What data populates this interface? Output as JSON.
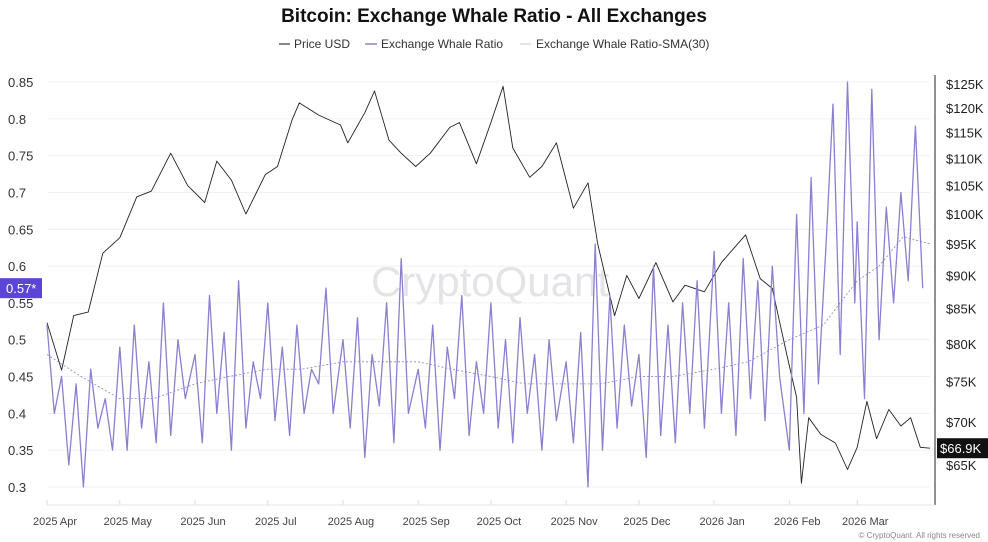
{
  "chart_data": {
    "type": "line",
    "title": "Bitcoin: Exchange Whale Ratio - All Exchanges",
    "legend": {
      "placement": "top-center",
      "entries": [
        "Price USD",
        "Exchange Whale Ratio",
        "Exchange Whale Ratio-SMA(30)"
      ]
    },
    "watermark": "CryptoQuant",
    "copyright": "© CryptoQuant. All rights reserved",
    "x_ticks": [
      "2025 Apr",
      "2025 May",
      "2025 Jun",
      "2025 Jul",
      "2025 Aug",
      "2025 Sep",
      "2025 Oct",
      "2025 Nov",
      "2025 Dec",
      "2026 Jan",
      "2026 Feb",
      "2026 Mar"
    ],
    "x_tick_dates": [
      "2025-04-01",
      "2025-05-01",
      "2025-06-01",
      "2025-07-01",
      "2025-08-01",
      "2025-09-01",
      "2025-10-01",
      "2025-11-01",
      "2025-12-01",
      "2026-01-01",
      "2026-02-01",
      "2026-03-01"
    ],
    "xlim": [
      "2025-04-01",
      "2026-03-31"
    ],
    "y_left": {
      "ylim": [
        0.28,
        0.87
      ],
      "ticks": [
        "0.85",
        "0.8",
        "0.75",
        "0.7",
        "0.65",
        "0.6",
        "0.55",
        "0.5",
        "0.45",
        "0.4",
        "0.35",
        "0.3"
      ],
      "current_label": "0.57*"
    },
    "y_right": {
      "scale": "log",
      "ylim": [
        61000,
        128000
      ],
      "ticks": [
        "$125K",
        "$120K",
        "$115K",
        "$110K",
        "$105K",
        "$100K",
        "$95K",
        "$90K",
        "$85K",
        "$80K",
        "$75K",
        "$70K",
        "$65K"
      ],
      "tick_values": [
        125000,
        120000,
        115000,
        110000,
        105000,
        100000,
        95000,
        90000,
        85000,
        80000,
        75000,
        70000,
        65000
      ],
      "current_label": "$66.9K"
    },
    "colors": {
      "price": "#222222",
      "whale": "#8a7fd0",
      "sma": "#8a7fd0",
      "current_left_bg": "#5b45d6",
      "current_right_bg": "#111111"
    },
    "series": [
      {
        "name": "Price USD",
        "axis": "right",
        "points": [
          [
            "2025-04-01",
            83000
          ],
          [
            "2025-04-07",
            76500
          ],
          [
            "2025-04-12",
            84000
          ],
          [
            "2025-04-18",
            84500
          ],
          [
            "2025-04-24",
            93500
          ],
          [
            "2025-05-01",
            96000
          ],
          [
            "2025-05-08",
            103000
          ],
          [
            "2025-05-14",
            104000
          ],
          [
            "2025-05-22",
            111000
          ],
          [
            "2025-05-29",
            105000
          ],
          [
            "2025-06-05",
            102000
          ],
          [
            "2025-06-10",
            109500
          ],
          [
            "2025-06-16",
            106000
          ],
          [
            "2025-06-22",
            100000
          ],
          [
            "2025-06-30",
            107000
          ],
          [
            "2025-07-05",
            108500
          ],
          [
            "2025-07-11",
            117500
          ],
          [
            "2025-07-14",
            121000
          ],
          [
            "2025-07-22",
            118500
          ],
          [
            "2025-07-31",
            116500
          ],
          [
            "2025-08-03",
            113000
          ],
          [
            "2025-08-10",
            119000
          ],
          [
            "2025-08-14",
            123500
          ],
          [
            "2025-08-20",
            113500
          ],
          [
            "2025-08-25",
            111000
          ],
          [
            "2025-08-31",
            108500
          ],
          [
            "2025-09-06",
            111000
          ],
          [
            "2025-09-14",
            116000
          ],
          [
            "2025-09-18",
            117000
          ],
          [
            "2025-09-25",
            109000
          ],
          [
            "2025-10-01",
            117000
          ],
          [
            "2025-10-06",
            124500
          ],
          [
            "2025-10-10",
            112000
          ],
          [
            "2025-10-17",
            106500
          ],
          [
            "2025-10-22",
            108500
          ],
          [
            "2025-10-28",
            113000
          ],
          [
            "2025-11-04",
            101000
          ],
          [
            "2025-11-10",
            105500
          ],
          [
            "2025-11-14",
            95000
          ],
          [
            "2025-11-21",
            84000
          ],
          [
            "2025-11-26",
            90000
          ],
          [
            "2025-12-01",
            86500
          ],
          [
            "2025-12-08",
            92000
          ],
          [
            "2025-12-15",
            86000
          ],
          [
            "2025-12-20",
            88500
          ],
          [
            "2025-12-28",
            87500
          ],
          [
            "2026-01-04",
            92000
          ],
          [
            "2026-01-14",
            96500
          ],
          [
            "2026-01-20",
            89500
          ],
          [
            "2026-01-25",
            88000
          ],
          [
            "2026-01-31",
            78500
          ],
          [
            "2026-02-04",
            73000
          ],
          [
            "2026-02-06",
            63000
          ],
          [
            "2026-02-09",
            70500
          ],
          [
            "2026-02-14",
            68500
          ],
          [
            "2026-02-20",
            67500
          ],
          [
            "2026-02-25",
            64500
          ],
          [
            "2026-03-01",
            67000
          ],
          [
            "2026-03-05",
            72500
          ],
          [
            "2026-03-09",
            68000
          ],
          [
            "2026-03-14",
            71500
          ],
          [
            "2026-03-19",
            69500
          ],
          [
            "2026-03-23",
            70500
          ],
          [
            "2026-03-27",
            67000
          ],
          [
            "2026-03-31",
            66900
          ]
        ]
      },
      {
        "name": "Exchange Whale Ratio",
        "axis": "left",
        "points": [
          [
            "2025-04-01",
            0.52
          ],
          [
            "2025-04-04",
            0.4
          ],
          [
            "2025-04-07",
            0.45
          ],
          [
            "2025-04-10",
            0.33
          ],
          [
            "2025-04-13",
            0.44
          ],
          [
            "2025-04-16",
            0.3
          ],
          [
            "2025-04-19",
            0.46
          ],
          [
            "2025-04-22",
            0.38
          ],
          [
            "2025-04-25",
            0.42
          ],
          [
            "2025-04-28",
            0.35
          ],
          [
            "2025-05-01",
            0.49
          ],
          [
            "2025-05-04",
            0.35
          ],
          [
            "2025-05-07",
            0.52
          ],
          [
            "2025-05-10",
            0.38
          ],
          [
            "2025-05-13",
            0.47
          ],
          [
            "2025-05-16",
            0.36
          ],
          [
            "2025-05-19",
            0.55
          ],
          [
            "2025-05-22",
            0.37
          ],
          [
            "2025-05-25",
            0.5
          ],
          [
            "2025-05-28",
            0.42
          ],
          [
            "2025-06-01",
            0.48
          ],
          [
            "2025-06-04",
            0.36
          ],
          [
            "2025-06-07",
            0.56
          ],
          [
            "2025-06-10",
            0.4
          ],
          [
            "2025-06-13",
            0.51
          ],
          [
            "2025-06-16",
            0.35
          ],
          [
            "2025-06-19",
            0.58
          ],
          [
            "2025-06-22",
            0.38
          ],
          [
            "2025-06-25",
            0.47
          ],
          [
            "2025-06-28",
            0.42
          ],
          [
            "2025-07-01",
            0.55
          ],
          [
            "2025-07-04",
            0.39
          ],
          [
            "2025-07-07",
            0.49
          ],
          [
            "2025-07-10",
            0.37
          ],
          [
            "2025-07-13",
            0.52
          ],
          [
            "2025-07-16",
            0.4
          ],
          [
            "2025-07-19",
            0.46
          ],
          [
            "2025-07-22",
            0.44
          ],
          [
            "2025-07-25",
            0.57
          ],
          [
            "2025-07-28",
            0.4
          ],
          [
            "2025-08-01",
            0.5
          ],
          [
            "2025-08-04",
            0.38
          ],
          [
            "2025-08-07",
            0.53
          ],
          [
            "2025-08-10",
            0.34
          ],
          [
            "2025-08-13",
            0.48
          ],
          [
            "2025-08-16",
            0.41
          ],
          [
            "2025-08-19",
            0.55
          ],
          [
            "2025-08-22",
            0.36
          ],
          [
            "2025-08-25",
            0.61
          ],
          [
            "2025-08-28",
            0.4
          ],
          [
            "2025-09-01",
            0.46
          ],
          [
            "2025-09-04",
            0.38
          ],
          [
            "2025-09-07",
            0.52
          ],
          [
            "2025-09-10",
            0.35
          ],
          [
            "2025-09-13",
            0.49
          ],
          [
            "2025-09-16",
            0.42
          ],
          [
            "2025-09-19",
            0.56
          ],
          [
            "2025-09-22",
            0.37
          ],
          [
            "2025-09-25",
            0.47
          ],
          [
            "2025-09-28",
            0.4
          ],
          [
            "2025-10-01",
            0.55
          ],
          [
            "2025-10-04",
            0.38
          ],
          [
            "2025-10-07",
            0.5
          ],
          [
            "2025-10-10",
            0.36
          ],
          [
            "2025-10-13",
            0.53
          ],
          [
            "2025-10-16",
            0.4
          ],
          [
            "2025-10-19",
            0.48
          ],
          [
            "2025-10-22",
            0.35
          ],
          [
            "2025-10-25",
            0.5
          ],
          [
            "2025-10-28",
            0.39
          ],
          [
            "2025-11-01",
            0.47
          ],
          [
            "2025-11-04",
            0.36
          ],
          [
            "2025-11-07",
            0.51
          ],
          [
            "2025-11-10",
            0.3
          ],
          [
            "2025-11-13",
            0.63
          ],
          [
            "2025-11-16",
            0.35
          ],
          [
            "2025-11-19",
            0.56
          ],
          [
            "2025-11-22",
            0.38
          ],
          [
            "2025-11-25",
            0.52
          ],
          [
            "2025-11-28",
            0.41
          ],
          [
            "2025-12-01",
            0.48
          ],
          [
            "2025-12-04",
            0.34
          ],
          [
            "2025-12-07",
            0.6
          ],
          [
            "2025-12-10",
            0.37
          ],
          [
            "2025-12-13",
            0.52
          ],
          [
            "2025-12-16",
            0.36
          ],
          [
            "2025-12-19",
            0.55
          ],
          [
            "2025-12-22",
            0.4
          ],
          [
            "2025-12-25",
            0.58
          ],
          [
            "2025-12-28",
            0.38
          ],
          [
            "2026-01-01",
            0.62
          ],
          [
            "2026-01-04",
            0.4
          ],
          [
            "2026-01-07",
            0.55
          ],
          [
            "2026-01-10",
            0.37
          ],
          [
            "2026-01-13",
            0.61
          ],
          [
            "2026-01-16",
            0.42
          ],
          [
            "2026-01-19",
            0.58
          ],
          [
            "2026-01-22",
            0.39
          ],
          [
            "2026-01-25",
            0.6
          ],
          [
            "2026-01-28",
            0.45
          ],
          [
            "2026-02-01",
            0.35
          ],
          [
            "2026-02-04",
            0.67
          ],
          [
            "2026-02-07",
            0.4
          ],
          [
            "2026-02-10",
            0.72
          ],
          [
            "2026-02-13",
            0.44
          ],
          [
            "2026-02-16",
            0.62
          ],
          [
            "2026-02-19",
            0.82
          ],
          [
            "2026-02-22",
            0.48
          ],
          [
            "2026-02-25",
            0.85
          ],
          [
            "2026-02-28",
            0.55
          ],
          [
            "2026-03-01",
            0.66
          ],
          [
            "2026-03-04",
            0.42
          ],
          [
            "2026-03-07",
            0.84
          ],
          [
            "2026-03-10",
            0.5
          ],
          [
            "2026-03-13",
            0.68
          ],
          [
            "2026-03-16",
            0.55
          ],
          [
            "2026-03-19",
            0.7
          ],
          [
            "2026-03-22",
            0.58
          ],
          [
            "2026-03-25",
            0.79
          ],
          [
            "2026-03-28",
            0.57
          ]
        ]
      },
      {
        "name": "Exchange Whale Ratio-SMA(30)",
        "axis": "left",
        "points": [
          [
            "2025-04-01",
            0.48
          ],
          [
            "2025-04-15",
            0.45
          ],
          [
            "2025-05-01",
            0.42
          ],
          [
            "2025-05-15",
            0.42
          ],
          [
            "2025-06-01",
            0.44
          ],
          [
            "2025-06-15",
            0.45
          ],
          [
            "2025-07-01",
            0.46
          ],
          [
            "2025-07-15",
            0.46
          ],
          [
            "2025-08-01",
            0.47
          ],
          [
            "2025-08-15",
            0.47
          ],
          [
            "2025-09-01",
            0.47
          ],
          [
            "2025-09-15",
            0.46
          ],
          [
            "2025-10-01",
            0.45
          ],
          [
            "2025-10-15",
            0.44
          ],
          [
            "2025-11-01",
            0.44
          ],
          [
            "2025-11-15",
            0.44
          ],
          [
            "2025-12-01",
            0.45
          ],
          [
            "2025-12-15",
            0.45
          ],
          [
            "2026-01-01",
            0.46
          ],
          [
            "2026-01-15",
            0.47
          ],
          [
            "2026-02-01",
            0.5
          ],
          [
            "2026-02-15",
            0.52
          ],
          [
            "2026-03-01",
            0.58
          ],
          [
            "2026-03-10",
            0.6
          ],
          [
            "2026-03-20",
            0.64
          ],
          [
            "2026-03-31",
            0.63
          ]
        ]
      }
    ]
  }
}
